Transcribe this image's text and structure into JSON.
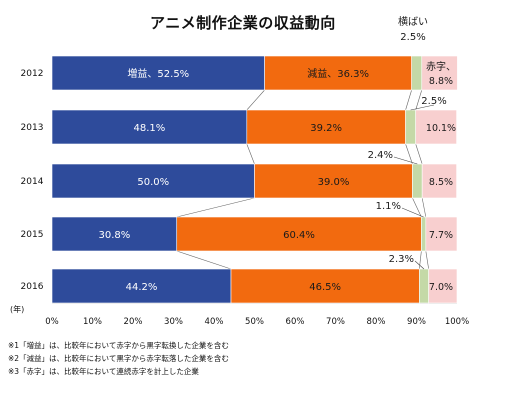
{
  "chart_data": {
    "type": "bar",
    "orientation": "horizontal",
    "stacked": true,
    "title": "アニメ制作企業の収益動向",
    "categories": [
      "2012",
      "2013",
      "2014",
      "2015",
      "2016"
    ],
    "y_unit_label": "(年)",
    "series": [
      {
        "name": "増益",
        "color": "#2e4b9b",
        "values": [
          52.5,
          48.1,
          50.0,
          30.8,
          44.2
        ],
        "labels": [
          "増益、52.5%",
          "48.1%",
          "50.0%",
          "30.8%",
          "44.2%"
        ]
      },
      {
        "name": "減益",
        "color": "#f26a0f",
        "values": [
          36.3,
          39.2,
          39.0,
          60.4,
          46.5
        ],
        "labels": [
          "減益、36.3%",
          "39.2%",
          "39.0%",
          "60.4%",
          "46.5%"
        ]
      },
      {
        "name": "横ばい",
        "color": "#c4d9a7",
        "values": [
          2.5,
          2.5,
          2.4,
          1.1,
          2.3
        ],
        "labels": [
          "2.5%",
          "2.5%",
          "2.4%",
          "1.1%",
          "2.3%"
        ]
      },
      {
        "name": "赤字",
        "color": "#f8cfcf",
        "values": [
          8.8,
          10.1,
          8.5,
          7.7,
          7.0
        ],
        "labels": [
          "8.8%",
          "10.1%",
          "8.5%",
          "7.7%",
          "7.0%"
        ]
      }
    ],
    "xlim": [
      0,
      100
    ],
    "xticks": [
      "0%",
      "10%",
      "20%",
      "30%",
      "40%",
      "50%",
      "60%",
      "70%",
      "80%",
      "90%",
      "100%"
    ],
    "grid": false,
    "legend": "none"
  },
  "notes": [
    "※1「増益」は、比較年において赤字から黒字転換した企業を含む",
    "※2「減益」は、比較年において黒字から赤字転落した企業を含む",
    "※3「赤字」は、比較年において連続赤字を計上した企業"
  ]
}
